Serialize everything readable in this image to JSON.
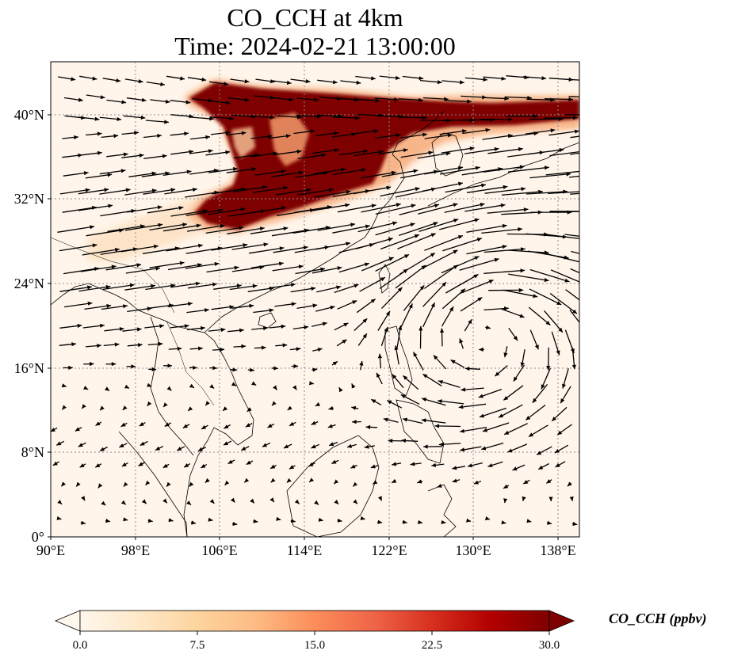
{
  "title_line1": "CO_CCH at 4km",
  "title_line2": "Time: 2024-02-21 13:00:00",
  "map": {
    "lon_range": [
      90,
      140
    ],
    "lat_range": [
      0,
      44.5
    ],
    "lat_ticks": [
      {
        "value": 0,
        "label": "0°"
      },
      {
        "value": 8,
        "label": "8°N"
      },
      {
        "value": 16,
        "label": "16°N"
      },
      {
        "value": 24,
        "label": "24°N"
      },
      {
        "value": 32,
        "label": "32°N"
      },
      {
        "value": 40,
        "label": "40°N"
      }
    ],
    "lon_ticks": [
      {
        "value": 90,
        "label": "90°E"
      },
      {
        "value": 98,
        "label": "98°E"
      },
      {
        "value": 106,
        "label": "106°E"
      },
      {
        "value": 114,
        "label": "114°E"
      },
      {
        "value": 122,
        "label": "122°E"
      },
      {
        "value": 130,
        "label": "130°E"
      },
      {
        "value": 138,
        "label": "138°E"
      }
    ],
    "gridlines": "dotted",
    "wind_vectors": "black quiver arrows; westerly jet north of ~20°N, anticyclonic circulation near 130°E 20°N",
    "plume": {
      "description": "high CO_CCH concentration over eastern China",
      "core_value_ppbv": 30,
      "lon_extent": [
        103,
        140
      ],
      "lat_extent": [
        29,
        43
      ]
    }
  },
  "colorbar": {
    "label": "CO_CCH (ppbv)",
    "colormap": "OrRd",
    "min": 0,
    "max": 30,
    "extend": "both",
    "ticks": [
      {
        "value": 0,
        "label": "0.0"
      },
      {
        "value": 7.5,
        "label": "7.5"
      },
      {
        "value": 15,
        "label": "15.0"
      },
      {
        "value": 22.5,
        "label": "22.5"
      },
      {
        "value": 30,
        "label": "30.0"
      }
    ],
    "colors": [
      "#fff7ec",
      "#fee8c8",
      "#fdd49e",
      "#fdbb84",
      "#fc8d59",
      "#ef6548",
      "#d7301f",
      "#b30000",
      "#7f0000"
    ]
  }
}
